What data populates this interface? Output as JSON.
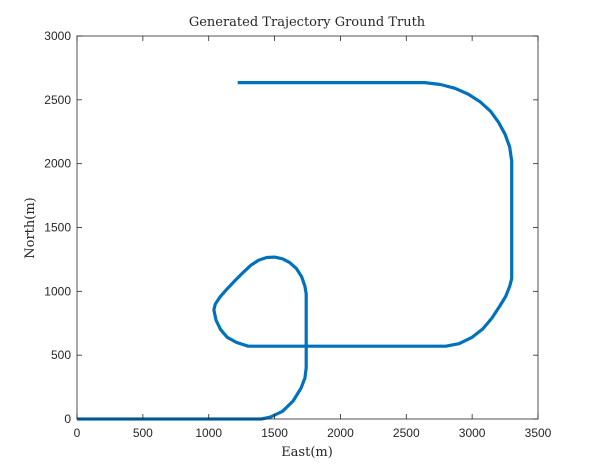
{
  "chart_data": {
    "type": "line",
    "title": "Generated Trajectory Ground Truth",
    "xlabel": "East(m)",
    "ylabel": "North(m)",
    "xlim": [
      0,
      3500
    ],
    "ylim": [
      0,
      3000
    ],
    "xticks": [
      0,
      500,
      1000,
      1500,
      2000,
      2500,
      3000,
      3500
    ],
    "yticks": [
      0,
      500,
      1000,
      1500,
      2000,
      2500,
      3000
    ],
    "grid": false,
    "box": true,
    "series": [
      {
        "color": "#0072BD",
        "x": [
          0,
          1400,
          1468,
          1560,
          1640,
          1700,
          1730,
          1740,
          1740,
          1730,
          1705,
          1665,
          1615,
          1560,
          1500,
          1440,
          1380,
          1320,
          1262,
          1200,
          1140,
          1085,
          1050,
          1040,
          1040,
          1055,
          1090,
          1140,
          1210,
          1300,
          2800,
          2900,
          3000,
          3080,
          3150,
          3210,
          3255,
          3285,
          3300,
          3300,
          3285,
          3250,
          3200,
          3140,
          3060,
          2970,
          2870,
          2760,
          2640,
          2600,
          1220
        ],
        "y": [
          0,
          0,
          15,
          60,
          140,
          240,
          320,
          400,
          980,
          1040,
          1115,
          1180,
          1225,
          1255,
          1268,
          1265,
          1245,
          1205,
          1148,
          1085,
          1020,
          955,
          900,
          860,
          850,
          775,
          700,
          640,
          600,
          570,
          570,
          590,
          640,
          705,
          790,
          885,
          960,
          1040,
          1100,
          2020,
          2130,
          2230,
          2325,
          2410,
          2485,
          2545,
          2590,
          2620,
          2635,
          2635,
          2635
        ]
      }
    ]
  }
}
